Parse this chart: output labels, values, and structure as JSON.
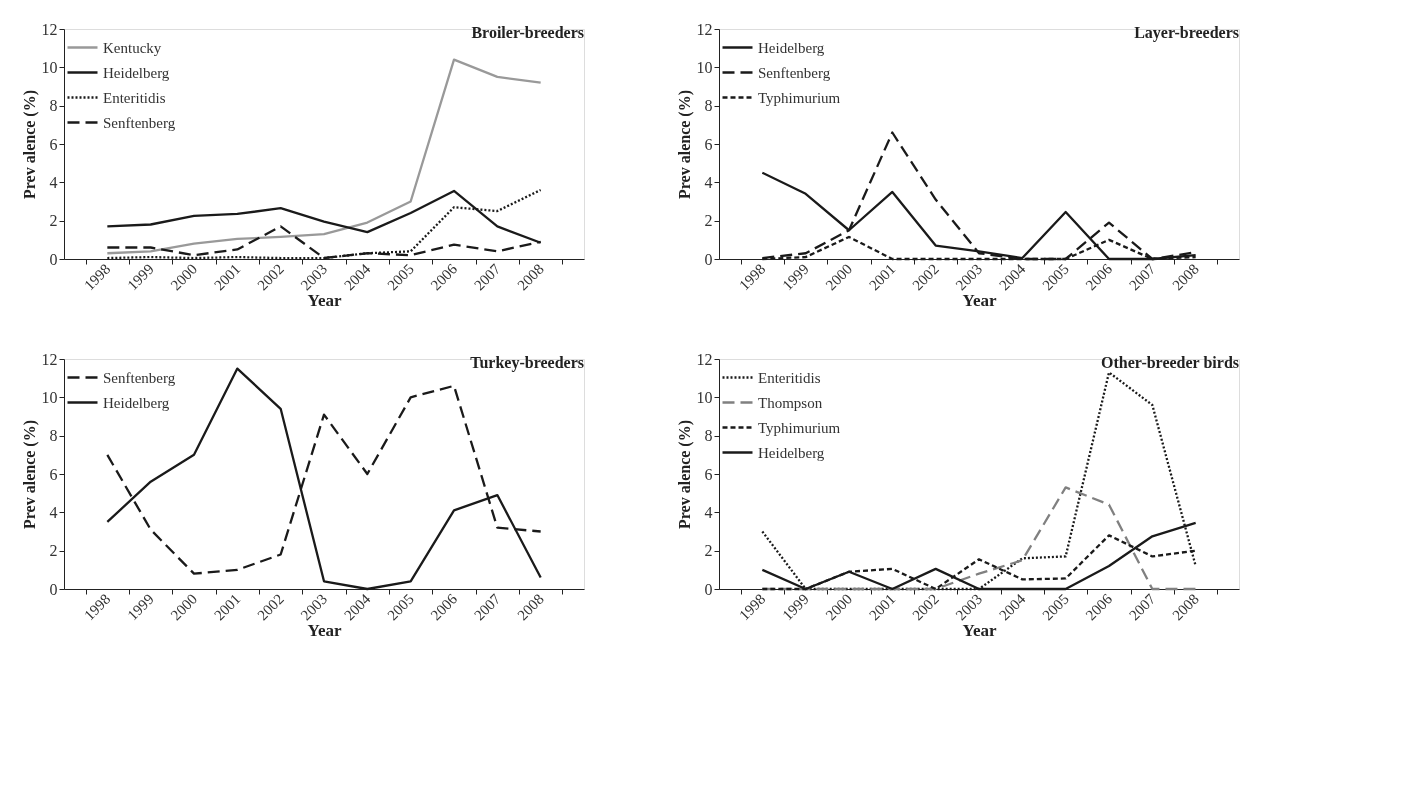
{
  "chart_data": [
    {
      "type": "line",
      "title": "Broiler-breeders",
      "xlabel": "Year",
      "ylabel": "Prev alence (%)",
      "categories": [
        "1998",
        "1999",
        "2000",
        "2001",
        "2002",
        "2003",
        "2004",
        "2005",
        "2006",
        "2007",
        "2008"
      ],
      "ylim": [
        0,
        12
      ],
      "yticks": [
        0,
        2,
        4,
        6,
        8,
        10,
        12
      ],
      "grid": false,
      "legend": "top left",
      "marker": "none",
      "series": [
        {
          "name": "Kentucky",
          "color": "#999999",
          "line_style": "solid",
          "values": [
            0.3,
            0.4,
            0.8,
            1.05,
            1.15,
            1.3,
            1.9,
            3.0,
            10.4,
            9.5,
            9.2
          ]
        },
        {
          "name": "Heidelberg",
          "color": "#1a1a1a",
          "line_style": "solid",
          "values": [
            1.7,
            1.8,
            2.25,
            2.35,
            2.65,
            1.95,
            1.4,
            2.4,
            3.55,
            1.7,
            0.85
          ]
        },
        {
          "name": "Enteritidis",
          "color": "#1a1a1a",
          "line_style": "dotted",
          "values": [
            0.05,
            0.1,
            0.05,
            0.1,
            0.05,
            0.05,
            0.3,
            0.4,
            2.7,
            2.5,
            3.6
          ]
        },
        {
          "name": "Senftenberg",
          "color": "#1a1a1a",
          "line_style": "dashed",
          "values": [
            0.6,
            0.6,
            0.2,
            0.5,
            1.7,
            0.05,
            0.3,
            0.2,
            0.75,
            0.4,
            0.9
          ]
        }
      ]
    },
    {
      "type": "line",
      "title": "Layer-breeders",
      "xlabel": "Year",
      "ylabel": "Prev alence (%)",
      "categories": [
        "1998",
        "1999",
        "2000",
        "2001",
        "2002",
        "2003",
        "2004",
        "2005",
        "2006",
        "2007",
        "2008"
      ],
      "ylim": [
        0,
        12
      ],
      "yticks": [
        0,
        2,
        4,
        6,
        8,
        10,
        12
      ],
      "grid": false,
      "legend": "top left",
      "marker": "none",
      "series": [
        {
          "name": "Heidelberg",
          "color": "#1a1a1a",
          "line_style": "solid",
          "values": [
            4.5,
            3.4,
            1.5,
            3.5,
            0.7,
            0.4,
            0.05,
            2.45,
            0.0,
            0.0,
            0.2
          ]
        },
        {
          "name": "Senftenberg",
          "color": "#1a1a1a",
          "line_style": "dashed",
          "values": [
            0.05,
            0.3,
            1.5,
            6.6,
            3.1,
            0.3,
            0.0,
            0.0,
            1.9,
            0.0,
            0.35
          ]
        },
        {
          "name": "Typhimurium",
          "color": "#1a1a1a",
          "line_style": "dashed",
          "values": [
            0.0,
            0.1,
            1.15,
            0.0,
            0.0,
            0.0,
            0.0,
            0.0,
            1.0,
            0.0,
            0.1
          ]
        }
      ]
    },
    {
      "type": "line",
      "title": "Turkey-breeders",
      "xlabel": "Year",
      "ylabel": "Prev alence (%)",
      "categories": [
        "1998",
        "1999",
        "2000",
        "2001",
        "2002",
        "2003",
        "2004",
        "2005",
        "2006",
        "2007",
        "2008"
      ],
      "ylim": [
        0,
        12
      ],
      "yticks": [
        0,
        2,
        4,
        6,
        8,
        10,
        12
      ],
      "grid": false,
      "legend": "top left",
      "marker": "none",
      "series": [
        {
          "name": "Senftenberg",
          "color": "#1a1a1a",
          "line_style": "dashed",
          "values": [
            7.0,
            3.1,
            0.8,
            1.0,
            1.8,
            9.1,
            6.0,
            10.0,
            10.6,
            3.2,
            3.0
          ]
        },
        {
          "name": "Heidelberg",
          "color": "#1a1a1a",
          "line_style": "solid",
          "values": [
            3.5,
            5.6,
            7.0,
            11.5,
            9.4,
            0.4,
            0.0,
            0.4,
            4.1,
            4.9,
            0.6
          ]
        }
      ]
    },
    {
      "type": "line",
      "title": "Other-breeder birds",
      "xlabel": "Year",
      "ylabel": "Prev alence (%)",
      "categories": [
        "1998",
        "1999",
        "2000",
        "2001",
        "2002",
        "2003",
        "2004",
        "2005",
        "2006",
        "2007",
        "2008"
      ],
      "ylim": [
        0,
        12
      ],
      "yticks": [
        0,
        2,
        4,
        6,
        8,
        10,
        12
      ],
      "grid": false,
      "legend": "top left",
      "marker": "none",
      "series": [
        {
          "name": "Enteritidis",
          "color": "#1a1a1a",
          "line_style": "dotted",
          "values": [
            3.0,
            0.0,
            0.0,
            0.0,
            0.0,
            0.0,
            1.6,
            1.7,
            11.3,
            9.6,
            1.2
          ]
        },
        {
          "name": "Thompson",
          "color": "#808080",
          "line_style": "dashed",
          "values": [
            0.0,
            0.0,
            0.0,
            0.0,
            0.0,
            0.8,
            1.5,
            5.3,
            4.4,
            0.0,
            0.0
          ]
        },
        {
          "name": "Typhimurium",
          "color": "#1a1a1a",
          "line_style": "dashed",
          "values": [
            0.0,
            0.0,
            0.9,
            1.05,
            0.0,
            1.55,
            0.5,
            0.55,
            2.8,
            1.7,
            2.0
          ]
        },
        {
          "name": "Heidelberg",
          "color": "#1a1a1a",
          "line_style": "solid",
          "values": [
            1.0,
            0.0,
            0.9,
            0.0,
            1.05,
            0.0,
            0.0,
            0.0,
            1.2,
            2.75,
            3.45
          ]
        }
      ]
    }
  ]
}
